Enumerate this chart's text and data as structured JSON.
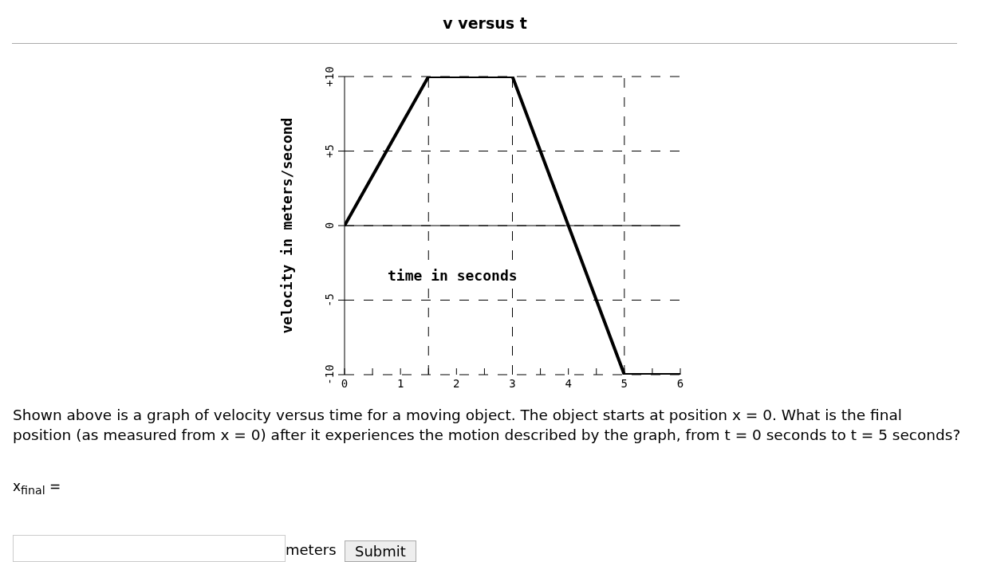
{
  "chart_data": {
    "type": "line",
    "title": "v versus t",
    "xlabel": "time in seconds",
    "ylabel": "velocity in meters/second",
    "x": [
      0,
      1.5,
      3,
      5,
      6
    ],
    "series": [
      {
        "color": "#000000",
        "values": [
          0,
          10,
          10,
          -10,
          -10
        ]
      }
    ],
    "xlim": [
      0,
      6
    ],
    "xticks": [
      0,
      {
        "value": 0.5,
        "label": null
      },
      1,
      {
        "value": 1.5,
        "label": null
      },
      2,
      {
        "value": 2.5,
        "label": null
      },
      3,
      {
        "value": 3.5,
        "label": null
      },
      4,
      {
        "value": 4.5,
        "label": null
      },
      5,
      {
        "value": 5.5,
        "label": null
      },
      6
    ],
    "ylim": [
      -10,
      10
    ],
    "yticks": [
      -10,
      -5,
      0,
      {
        "value": 5,
        "label": "+5"
      },
      {
        "value": 10,
        "label": "+10"
      }
    ],
    "grid": "y",
    "ref_lines": [
      {
        "axis": "x",
        "value": 1.5,
        "line_style": "dashed"
      },
      {
        "axis": "x",
        "value": 3,
        "line_style": "dashed"
      },
      {
        "axis": "x",
        "value": 5,
        "line_style": "dashed"
      }
    ],
    "marker": "none",
    "line_style": "solid",
    "annotations": [
      "Shown above is a graph of velocity versus time for a moving object. The object starts at position x = 0. What is the final position (as measured from x = 0) after it experiences the motion described by the graph, from t = 0 seconds to t = 5 seconds?",
      "x$_{final}$ =",
      "meters",
      "Submit"
    ]
  }
}
